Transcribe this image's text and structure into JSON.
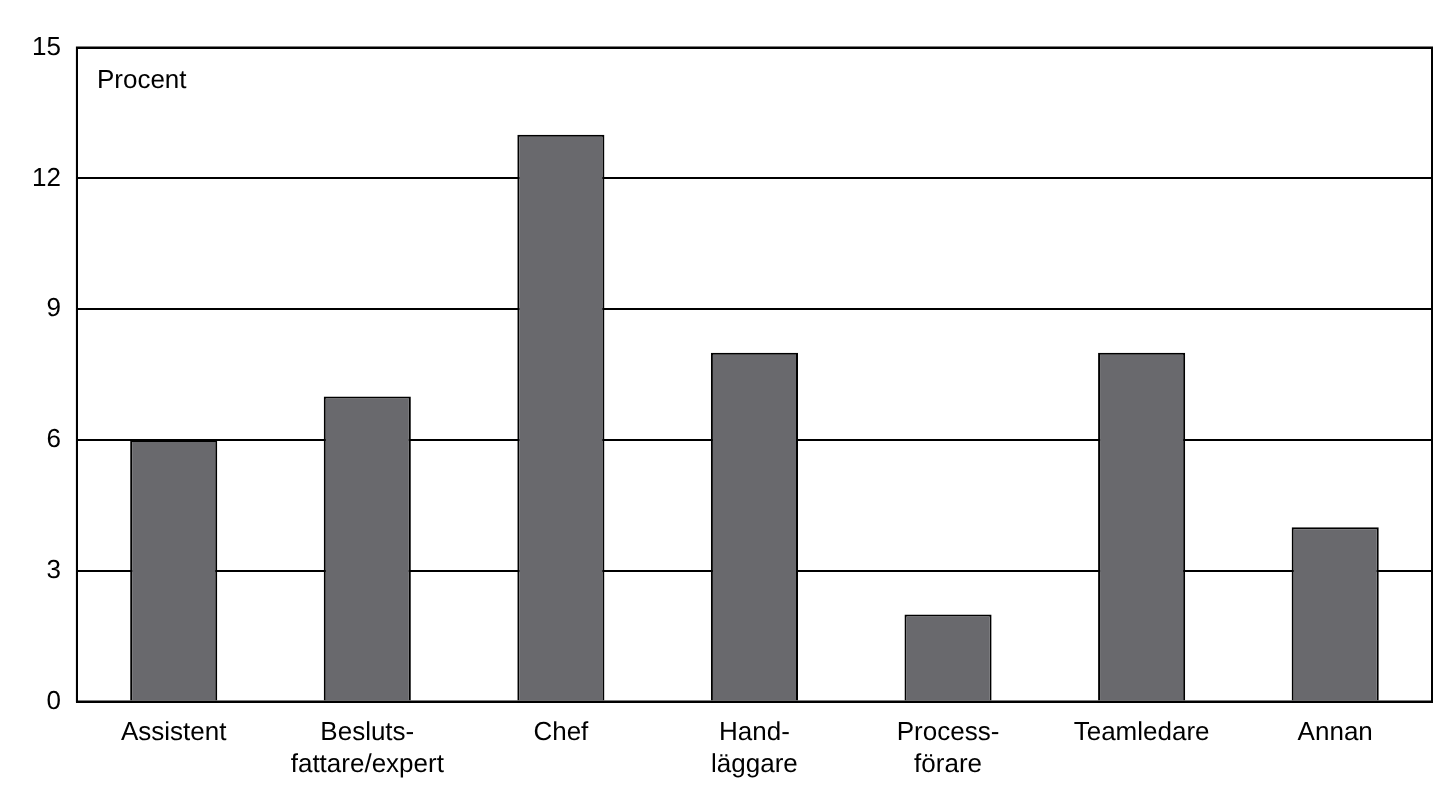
{
  "chart_data": {
    "type": "bar",
    "ylabel": "Procent",
    "categories": [
      "Assistent",
      "Besluts-\nfattare/expert",
      "Chef",
      "Hand-\nläggare",
      "Process-\nförare",
      "Teamledare",
      "Annan"
    ],
    "values": [
      6,
      7,
      13,
      8,
      2,
      8,
      4
    ],
    "color": "#69696d",
    "ylim": [
      0,
      15
    ],
    "yticks": [
      0,
      3,
      6,
      9,
      12,
      15
    ],
    "grid": "y"
  }
}
